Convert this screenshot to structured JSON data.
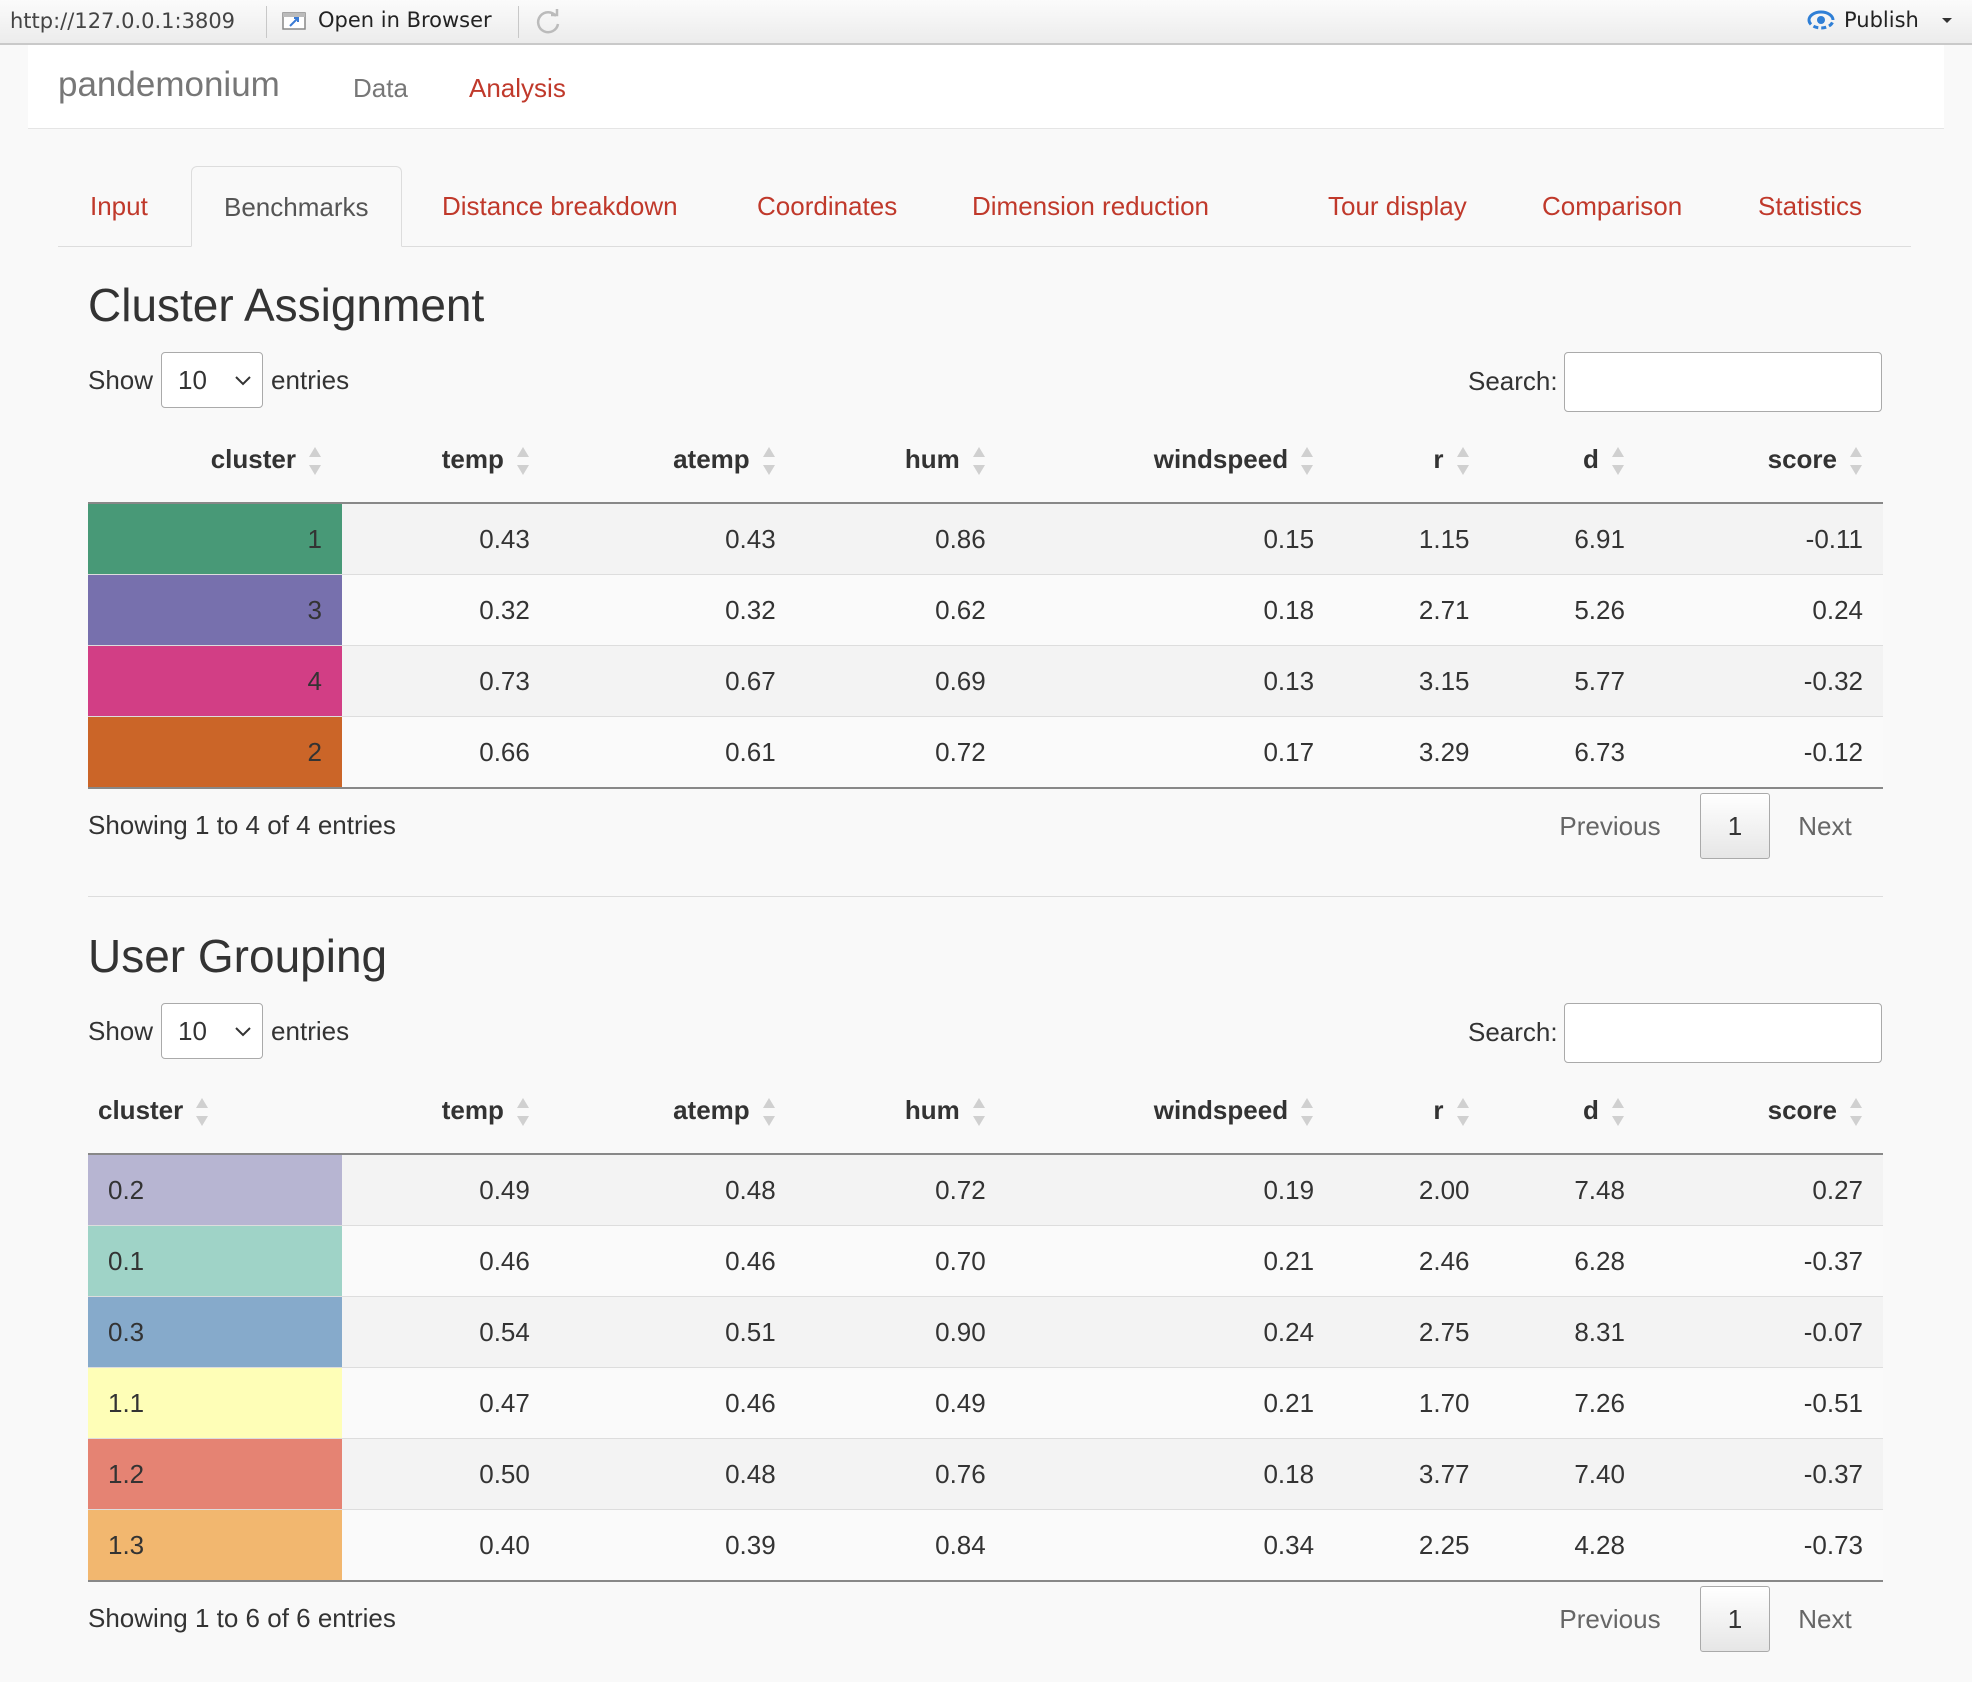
{
  "toolbar": {
    "url": "http://127.0.0.1:3809",
    "open_in_browser": "Open in Browser",
    "publish": "Publish"
  },
  "navbar": {
    "brand": "pandemonium",
    "links": [
      "Data",
      "Analysis"
    ]
  },
  "tabs": [
    "Input",
    "Benchmarks",
    "Distance breakdown",
    "Coordinates",
    "Dimension reduction",
    "Tour display",
    "Comparison",
    "Statistics"
  ],
  "active_tab": "Benchmarks",
  "tables": [
    {
      "title": "Cluster Assignment",
      "show_label": "Show",
      "entries_value": "10",
      "entries_label": "entries",
      "search_label": "Search:",
      "columns": [
        "cluster",
        "temp",
        "atemp",
        "hum",
        "windspeed",
        "r",
        "d",
        "score"
      ],
      "rows": [
        {
          "cluster": "1",
          "color": "#489977",
          "cells": [
            "0.43",
            "0.43",
            "0.86",
            "0.15",
            "1.15",
            "6.91",
            "-0.11"
          ]
        },
        {
          "cluster": "3",
          "color": "#7770ad",
          "cells": [
            "0.32",
            "0.32",
            "0.62",
            "0.18",
            "2.71",
            "5.26",
            "0.24"
          ]
        },
        {
          "cluster": "4",
          "color": "#d23e85",
          "cells": [
            "0.73",
            "0.67",
            "0.69",
            "0.13",
            "3.15",
            "5.77",
            "-0.32"
          ]
        },
        {
          "cluster": "2",
          "color": "#cb6528",
          "cells": [
            "0.66",
            "0.61",
            "0.72",
            "0.17",
            "3.29",
            "6.73",
            "-0.12"
          ]
        }
      ],
      "info": "Showing 1 to 4 of 4 entries",
      "pager": {
        "prev": "Previous",
        "current": "1",
        "next": "Next"
      }
    },
    {
      "title": "User Grouping",
      "show_label": "Show",
      "entries_value": "10",
      "entries_label": "entries",
      "search_label": "Search:",
      "columns": [
        "cluster",
        "temp",
        "atemp",
        "hum",
        "windspeed",
        "r",
        "d",
        "score"
      ],
      "rows": [
        {
          "cluster": "0.2",
          "color": "#b7b5d2",
          "cells": [
            "0.49",
            "0.48",
            "0.72",
            "0.19",
            "2.00",
            "7.48",
            "0.27"
          ]
        },
        {
          "cluster": "0.1",
          "color": "#9fd3c7",
          "cells": [
            "0.46",
            "0.46",
            "0.70",
            "0.21",
            "2.46",
            "6.28",
            "-0.37"
          ]
        },
        {
          "cluster": "0.3",
          "color": "#86aacb",
          "cells": [
            "0.54",
            "0.51",
            "0.90",
            "0.24",
            "2.75",
            "8.31",
            "-0.07"
          ]
        },
        {
          "cluster": "1.1",
          "color": "#fefeb7",
          "cells": [
            "0.47",
            "0.46",
            "0.49",
            "0.21",
            "1.70",
            "7.26",
            "-0.51"
          ]
        },
        {
          "cluster": "1.2",
          "color": "#e58373",
          "cells": [
            "0.50",
            "0.48",
            "0.76",
            "0.18",
            "3.77",
            "7.40",
            "-0.37"
          ]
        },
        {
          "cluster": "1.3",
          "color": "#f2b76f",
          "cells": [
            "0.40",
            "0.39",
            "0.84",
            "0.34",
            "2.25",
            "4.28",
            "-0.73"
          ]
        }
      ],
      "info": "Showing 1 to 6 of 6 entries",
      "pager": {
        "prev": "Previous",
        "current": "1",
        "next": "Next"
      }
    }
  ]
}
